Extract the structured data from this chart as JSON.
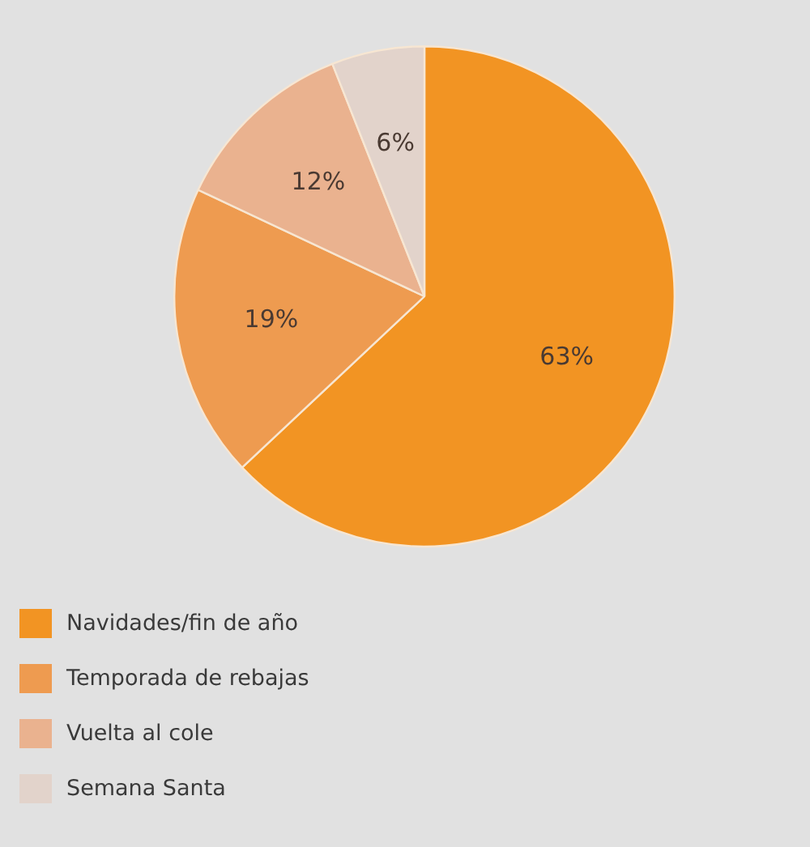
{
  "chart_data": {
    "type": "pie",
    "categories": [
      "Navidades/fin de año",
      "Temporada de rebajas",
      "Vuelta al cole",
      "Semana Santa"
    ],
    "values": [
      63,
      19,
      12,
      6
    ],
    "colors": [
      "#f29423",
      "#ee9b50",
      "#eab28f",
      "#e2d3cb"
    ],
    "value_labels": [
      "63%",
      "19%",
      "12%",
      "6%"
    ],
    "legend": "bottom left"
  }
}
